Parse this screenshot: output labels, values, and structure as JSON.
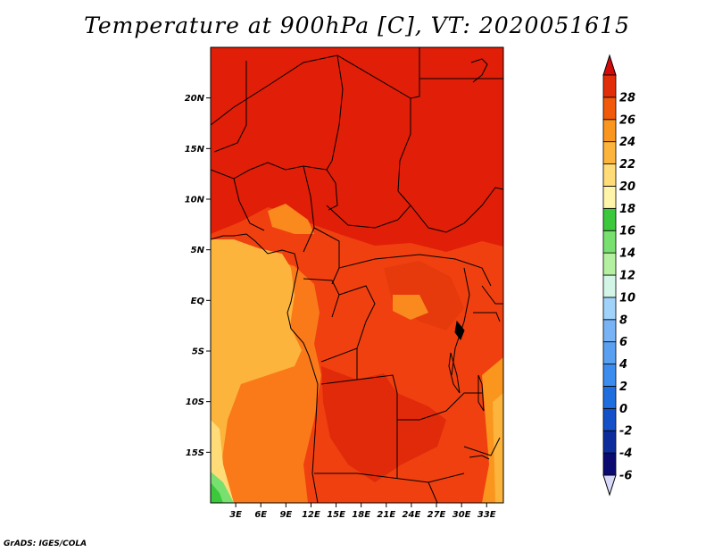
{
  "title": "Temperature at 900hPa [C], VT: 2020051615",
  "credit": "GrADS: IGES/COLA",
  "map": {
    "lon_range": [
      0,
      35
    ],
    "lat_range": [
      -20,
      25
    ],
    "lat_ticks": [
      {
        "value": 20,
        "label": "20N"
      },
      {
        "value": 15,
        "label": "15N"
      },
      {
        "value": 10,
        "label": "10N"
      },
      {
        "value": 5,
        "label": "5N"
      },
      {
        "value": 0,
        "label": "EQ"
      },
      {
        "value": -5,
        "label": "5S"
      },
      {
        "value": -10,
        "label": "10S"
      },
      {
        "value": -15,
        "label": "15S"
      }
    ],
    "lon_ticks": [
      {
        "value": 3,
        "label": "3E"
      },
      {
        "value": 6,
        "label": "6E"
      },
      {
        "value": 9,
        "label": "9E"
      },
      {
        "value": 12,
        "label": "12E"
      },
      {
        "value": 15,
        "label": "15E"
      },
      {
        "value": 18,
        "label": "18E"
      },
      {
        "value": 21,
        "label": "21E"
      },
      {
        "value": 24,
        "label": "24E"
      },
      {
        "value": 27,
        "label": "27E"
      },
      {
        "value": 30,
        "label": "30E"
      },
      {
        "value": 33,
        "label": "33E"
      }
    ]
  },
  "colorbar": {
    "levels": [
      {
        "label": "-6",
        "color": "#0a0a70"
      },
      {
        "label": "-4",
        "color": "#0d2d9c"
      },
      {
        "label": "-2",
        "color": "#1450c8"
      },
      {
        "label": "0",
        "color": "#1e6ee0"
      },
      {
        "label": "2",
        "color": "#3c8cf0"
      },
      {
        "label": "4",
        "color": "#5aa0f0"
      },
      {
        "label": "6",
        "color": "#78b4f5"
      },
      {
        "label": "8",
        "color": "#a0d2fa"
      },
      {
        "label": "10",
        "color": "#d2f5e6"
      },
      {
        "label": "12",
        "color": "#b4f0a0"
      },
      {
        "label": "14",
        "color": "#78e06e"
      },
      {
        "label": "16",
        "color": "#3cc83c"
      },
      {
        "label": "18",
        "color": "#fff5aa"
      },
      {
        "label": "20",
        "color": "#ffdc78"
      },
      {
        "label": "22",
        "color": "#fcb43c"
      },
      {
        "label": "24",
        "color": "#fa961e"
      },
      {
        "label": "26",
        "color": "#f05a0a"
      },
      {
        "label": "28",
        "color": "#e12d0a"
      }
    ],
    "bottom_color": "#d8d8f8",
    "top_color": "#d20a0a"
  }
}
